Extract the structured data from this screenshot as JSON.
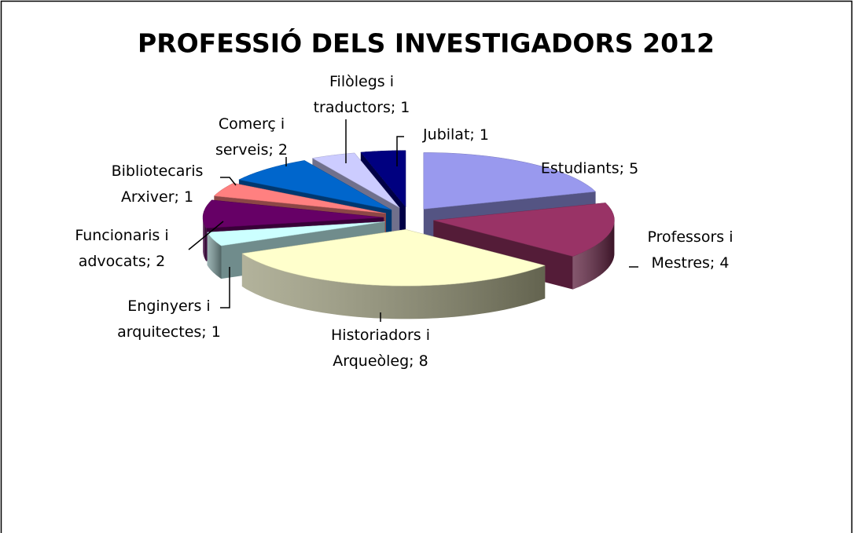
{
  "chart_data": {
    "type": "pie3d",
    "title": "PROFESSIÓ DELS INVESTIGADORS 2012",
    "categories": [
      "Estudiants",
      "Professors i Mestres",
      "Historiadors i Arqueòleg",
      "Enginyers i arquitectes",
      "Funcionaris i advocats",
      "Bibliotecaris Arxiver",
      "Comerç i serveis",
      "Filòlegs i traductors",
      "Jubilat"
    ],
    "values": [
      5,
      4,
      8,
      1,
      2,
      1,
      2,
      1,
      1
    ],
    "colors": [
      "#9999ee",
      "#993366",
      "#ffffcc",
      "#ccffff",
      "#660066",
      "#ff8080",
      "#0066cc",
      "#ccccff",
      "#000080"
    ]
  }
}
